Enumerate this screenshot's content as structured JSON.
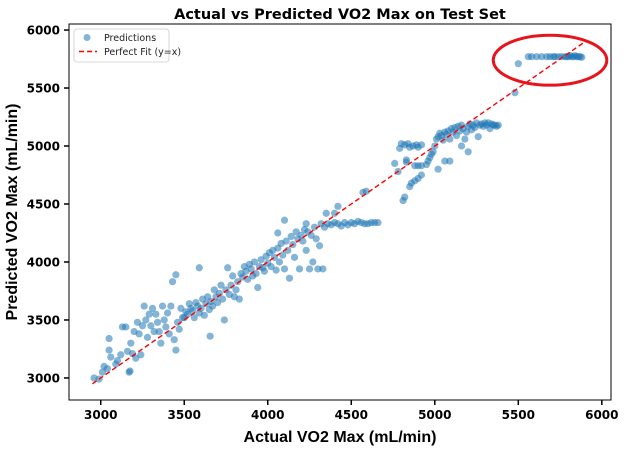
{
  "chart_data": {
    "type": "scatter",
    "title": "Actual vs Predicted VO2 Max on Test Set",
    "xlabel": "Actual VO2 Max (mL/min)",
    "ylabel": "Predicted VO2 Max (mL/min)",
    "xlim": [
      2810,
      6055
    ],
    "ylim": [
      2810,
      6052
    ],
    "xticks": [
      "3000",
      "3500",
      "4000",
      "4500",
      "5000",
      "5500",
      "6000"
    ],
    "yticks": [
      "3000",
      "3500",
      "4000",
      "4500",
      "5000",
      "5500",
      "6000"
    ],
    "grid": false,
    "legend": {
      "placement": "top-left",
      "entries": [
        "Predictions",
        "Perfect Fit (y=x)"
      ]
    },
    "colors": {
      "points": "#1f77b4",
      "fit_line": "#ff0000",
      "annotation": "#e8141b"
    },
    "fit_line": {
      "x": [
        2950,
        5900
      ],
      "y": [
        2950,
        5900
      ]
    },
    "annotation": {
      "type": "ellipse",
      "center": [
        5690,
        5740
      ],
      "radius": [
        340,
        215
      ]
    },
    "series": [
      {
        "name": "Predictions",
        "points": [
          [
            2960,
            3000
          ],
          [
            2990,
            2990
          ],
          [
            3010,
            3050
          ],
          [
            3020,
            3100
          ],
          [
            3040,
            3080
          ],
          [
            3050,
            3340
          ],
          [
            3050,
            3240
          ],
          [
            3060,
            3180
          ],
          [
            3090,
            3120
          ],
          [
            3100,
            3150
          ],
          [
            3120,
            3200
          ],
          [
            3130,
            3440
          ],
          [
            3150,
            3440
          ],
          [
            3160,
            3230
          ],
          [
            3170,
            3050
          ],
          [
            3175,
            3060
          ],
          [
            3180,
            3300
          ],
          [
            3190,
            3210
          ],
          [
            3200,
            3400
          ],
          [
            3210,
            3170
          ],
          [
            3220,
            3480
          ],
          [
            3230,
            3380
          ],
          [
            3240,
            3200
          ],
          [
            3250,
            3450
          ],
          [
            3260,
            3620
          ],
          [
            3270,
            3500
          ],
          [
            3280,
            3350
          ],
          [
            3290,
            3550
          ],
          [
            3300,
            3450
          ],
          [
            3310,
            3600
          ],
          [
            3320,
            3400
          ],
          [
            3330,
            3550
          ],
          [
            3340,
            3480
          ],
          [
            3350,
            3400
          ],
          [
            3360,
            3300
          ],
          [
            3370,
            3620
          ],
          [
            3380,
            3500
          ],
          [
            3390,
            3440
          ],
          [
            3400,
            3560
          ],
          [
            3410,
            3380
          ],
          [
            3420,
            3620
          ],
          [
            3430,
            3830
          ],
          [
            3440,
            3330
          ],
          [
            3450,
            3890
          ],
          [
            3450,
            3240
          ],
          [
            3460,
            3480
          ],
          [
            3470,
            3420
          ],
          [
            3480,
            3600
          ],
          [
            3490,
            3520
          ],
          [
            3500,
            3520
          ],
          [
            3510,
            3570
          ],
          [
            3520,
            3550
          ],
          [
            3530,
            3640
          ],
          [
            3540,
            3600
          ],
          [
            3550,
            3580
          ],
          [
            3560,
            3520
          ],
          [
            3570,
            3650
          ],
          [
            3580,
            3620
          ],
          [
            3590,
            3950
          ],
          [
            3590,
            3560
          ],
          [
            3600,
            3600
          ],
          [
            3610,
            3680
          ],
          [
            3620,
            3540
          ],
          [
            3630,
            3640
          ],
          [
            3640,
            3700
          ],
          [
            3650,
            3590
          ],
          [
            3655,
            3360
          ],
          [
            3660,
            3660
          ],
          [
            3670,
            3620
          ],
          [
            3680,
            3760
          ],
          [
            3690,
            3700
          ],
          [
            3700,
            3650
          ],
          [
            3710,
            3730
          ],
          [
            3720,
            3800
          ],
          [
            3730,
            3680
          ],
          [
            3740,
            3500
          ],
          [
            3750,
            3760
          ],
          [
            3760,
            3950
          ],
          [
            3770,
            3720
          ],
          [
            3780,
            3800
          ],
          [
            3790,
            3880
          ],
          [
            3800,
            3700
          ],
          [
            3810,
            3760
          ],
          [
            3820,
            3830
          ],
          [
            3830,
            3680
          ],
          [
            3840,
            3900
          ],
          [
            3850,
            3870
          ],
          [
            3860,
            3960
          ],
          [
            3870,
            3920
          ],
          [
            3880,
            3850
          ],
          [
            3890,
            3980
          ],
          [
            3900,
            3940
          ],
          [
            3910,
            3880
          ],
          [
            3920,
            4000
          ],
          [
            3930,
            3900
          ],
          [
            3940,
            3780
          ],
          [
            3950,
            3960
          ],
          [
            3960,
            4020
          ],
          [
            3970,
            3950
          ],
          [
            3980,
            3920
          ],
          [
            3990,
            4050
          ],
          [
            4000,
            3990
          ],
          [
            4010,
            4080
          ],
          [
            4020,
            3960
          ],
          [
            4030,
            4100
          ],
          [
            4040,
            4040
          ],
          [
            4050,
            3930
          ],
          [
            4060,
            4120
          ],
          [
            4070,
            4000
          ],
          [
            4080,
            4160
          ],
          [
            4090,
            4060
          ],
          [
            4100,
            3940
          ],
          [
            4110,
            4180
          ],
          [
            4120,
            4100
          ],
          [
            4130,
            3860
          ],
          [
            4140,
            4220
          ],
          [
            4150,
            4150
          ],
          [
            4160,
            4040
          ],
          [
            4170,
            4260
          ],
          [
            4180,
            4200
          ],
          [
            4190,
            3940
          ],
          [
            4200,
            4230
          ],
          [
            4210,
            4180
          ],
          [
            4220,
            4280
          ],
          [
            4230,
            4100
          ],
          [
            4240,
            4260
          ],
          [
            4250,
            3940
          ],
          [
            4260,
            4230
          ],
          [
            4270,
            4000
          ],
          [
            4280,
            4300
          ],
          [
            4290,
            4200
          ],
          [
            4300,
            3940
          ],
          [
            4310,
            4140
          ],
          [
            4320,
            4330
          ],
          [
            4330,
            3940
          ],
          [
            4340,
            4300
          ],
          [
            4360,
            4330
          ],
          [
            4380,
            4320
          ],
          [
            4400,
            4340
          ],
          [
            4420,
            4330
          ],
          [
            4440,
            4310
          ],
          [
            4460,
            4340
          ],
          [
            4480,
            4320
          ],
          [
            4500,
            4340
          ],
          [
            4520,
            4330
          ],
          [
            4540,
            4350
          ],
          [
            4560,
            4340
          ],
          [
            4580,
            4330
          ],
          [
            4600,
            4330
          ],
          [
            4620,
            4340
          ],
          [
            4640,
            4340
          ],
          [
            4660,
            4340
          ],
          [
            4570,
            4600
          ],
          [
            4590,
            4610
          ],
          [
            4420,
            4480
          ],
          [
            4400,
            4420
          ],
          [
            4350,
            4420
          ],
          [
            4230,
            4330
          ],
          [
            4100,
            4360
          ],
          [
            4060,
            4250
          ],
          [
            4760,
            4850
          ],
          [
            4780,
            4780
          ],
          [
            4790,
            4980
          ],
          [
            4800,
            5020
          ],
          [
            4820,
            5010
          ],
          [
            4840,
            5020
          ],
          [
            4850,
            4990
          ],
          [
            4870,
            5000
          ],
          [
            4890,
            5010
          ],
          [
            4900,
            4990
          ],
          [
            4920,
            5010
          ],
          [
            4830,
            4880
          ],
          [
            4830,
            4860
          ],
          [
            4810,
            4530
          ],
          [
            4820,
            4560
          ],
          [
            4850,
            4650
          ],
          [
            4860,
            4680
          ],
          [
            4880,
            4700
          ],
          [
            4900,
            4720
          ],
          [
            4920,
            4750
          ],
          [
            4880,
            4830
          ],
          [
            4900,
            4830
          ],
          [
            4920,
            4830
          ],
          [
            4950,
            4840
          ],
          [
            4960,
            4870
          ],
          [
            4970,
            4900
          ],
          [
            4980,
            4930
          ],
          [
            4990,
            4950
          ],
          [
            5000,
            5000
          ],
          [
            5010,
            5060
          ],
          [
            5020,
            5080
          ],
          [
            5030,
            5110
          ],
          [
            5040,
            5090
          ],
          [
            5050,
            5050
          ],
          [
            5060,
            5120
          ],
          [
            5070,
            5100
          ],
          [
            5080,
            5130
          ],
          [
            5090,
            5060
          ],
          [
            5100,
            5150
          ],
          [
            5110,
            5120
          ],
          [
            5120,
            5160
          ],
          [
            5130,
            5090
          ],
          [
            5140,
            5170
          ],
          [
            5150,
            5130
          ],
          [
            5160,
            5180
          ],
          [
            5170,
            5150
          ],
          [
            5180,
            5060
          ],
          [
            5190,
            5120
          ],
          [
            5200,
            5170
          ],
          [
            5210,
            5190
          ],
          [
            5220,
            5140
          ],
          [
            5230,
            5180
          ],
          [
            5240,
            5160
          ],
          [
            5250,
            5200
          ],
          [
            5260,
            5080
          ],
          [
            5270,
            5180
          ],
          [
            5280,
            5190
          ],
          [
            5290,
            5170
          ],
          [
            5300,
            5200
          ],
          [
            5310,
            5180
          ],
          [
            5320,
            5200
          ],
          [
            5330,
            5150
          ],
          [
            5340,
            5190
          ],
          [
            5350,
            5180
          ],
          [
            5360,
            5180
          ],
          [
            5370,
            5170
          ],
          [
            5380,
            5180
          ],
          [
            5160,
            5000
          ],
          [
            5200,
            4950
          ],
          [
            5090,
            4870
          ],
          [
            5060,
            4870
          ],
          [
            5020,
            4800
          ],
          [
            5480,
            5460
          ],
          [
            5500,
            5710
          ],
          [
            5560,
            5770
          ],
          [
            5580,
            5770
          ],
          [
            5610,
            5770
          ],
          [
            5640,
            5770
          ],
          [
            5670,
            5770
          ],
          [
            5690,
            5770
          ],
          [
            5710,
            5770
          ],
          [
            5720,
            5770
          ],
          [
            5740,
            5770
          ],
          [
            5760,
            5770
          ],
          [
            5780,
            5770
          ],
          [
            5790,
            5770
          ],
          [
            5800,
            5770
          ],
          [
            5810,
            5780
          ],
          [
            5820,
            5770
          ],
          [
            5830,
            5770
          ],
          [
            5840,
            5780
          ],
          [
            5850,
            5770
          ],
          [
            5860,
            5770
          ],
          [
            5870,
            5770
          ],
          [
            5880,
            5765
          ]
        ]
      }
    ]
  }
}
